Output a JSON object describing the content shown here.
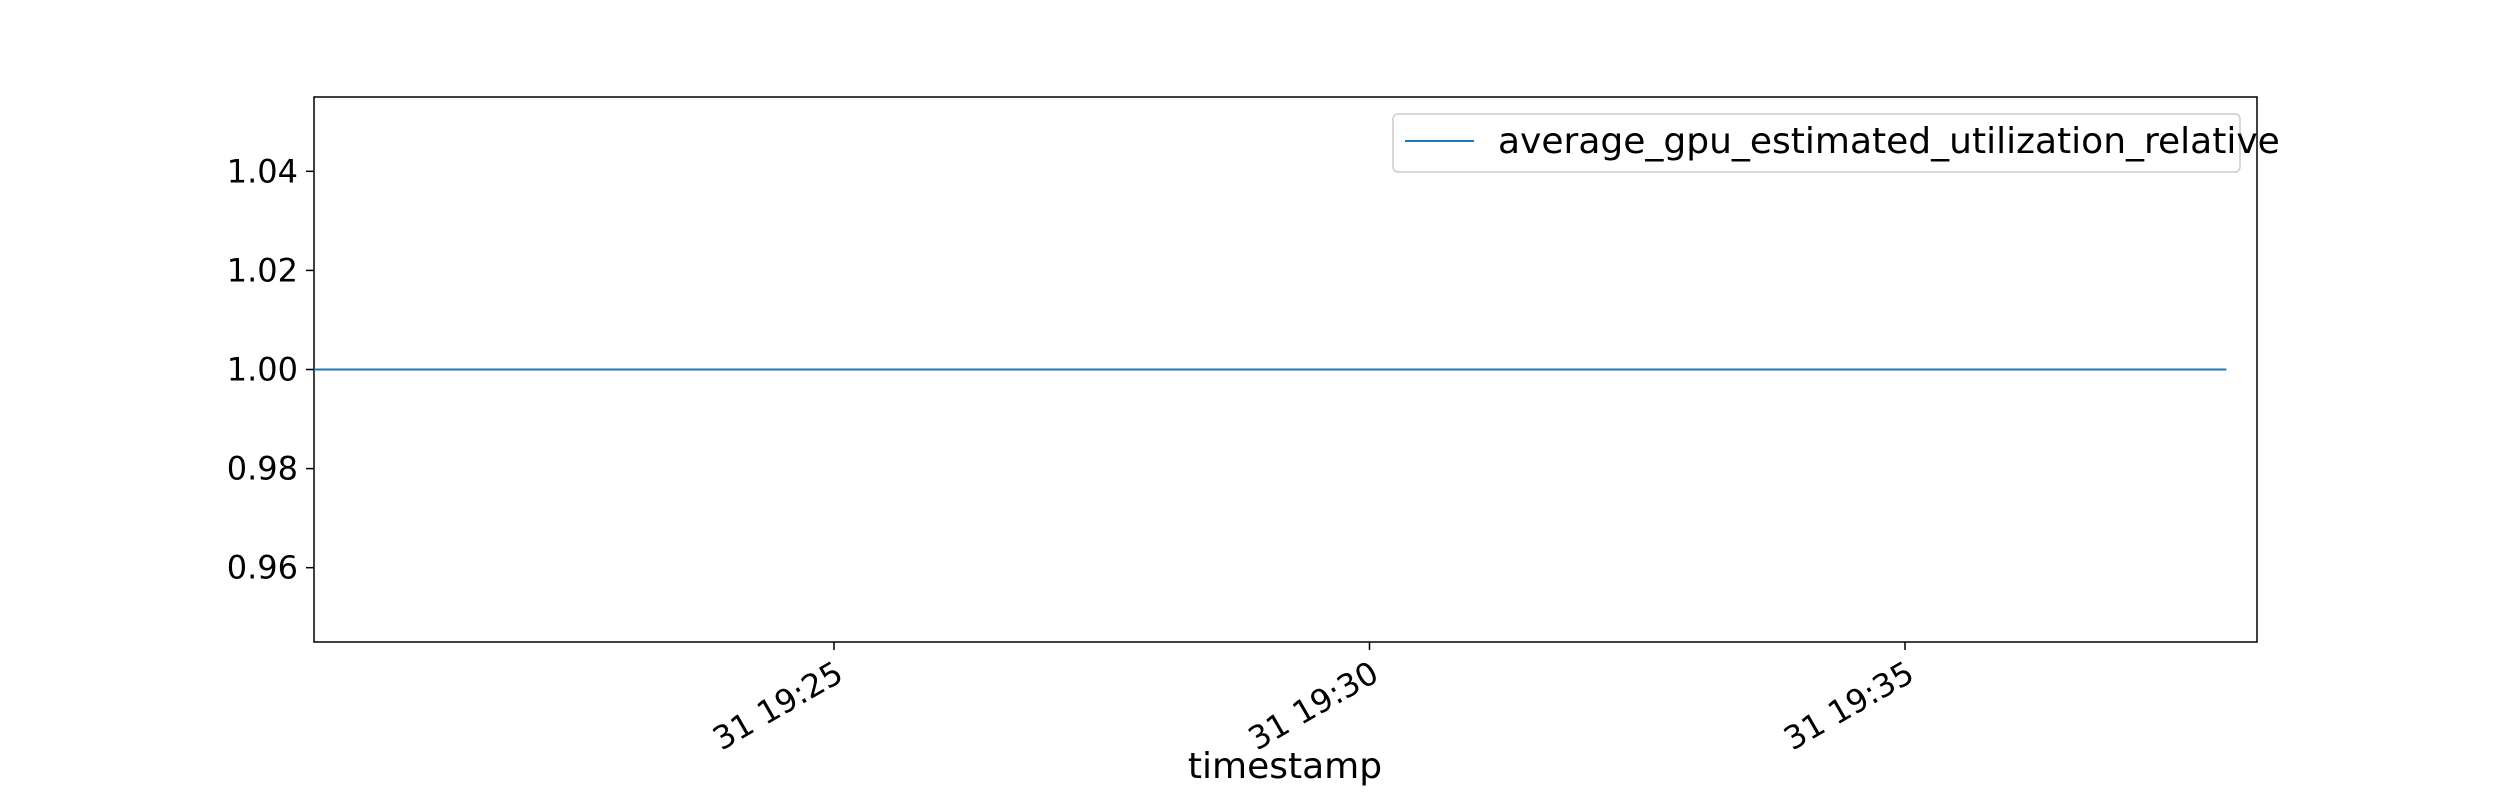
{
  "chart_data": {
    "type": "line",
    "title": "",
    "xlabel": "timestamp",
    "ylabel": "",
    "x": [
      "31 19:20",
      "31 19:38"
    ],
    "x_ticks": [
      "31 19:25",
      "31 19:30",
      "31 19:35"
    ],
    "y_ticks": [
      "1.04",
      "1.02",
      "1.00",
      "0.98",
      "0.96"
    ],
    "ylim": [
      0.945,
      1.055
    ],
    "grid": false,
    "legend_position": "top-right",
    "series": [
      {
        "name": "average_gpu_estimated_utilization_relative",
        "color": "#1f77b4",
        "values": [
          1.0,
          1.0
        ]
      }
    ]
  }
}
